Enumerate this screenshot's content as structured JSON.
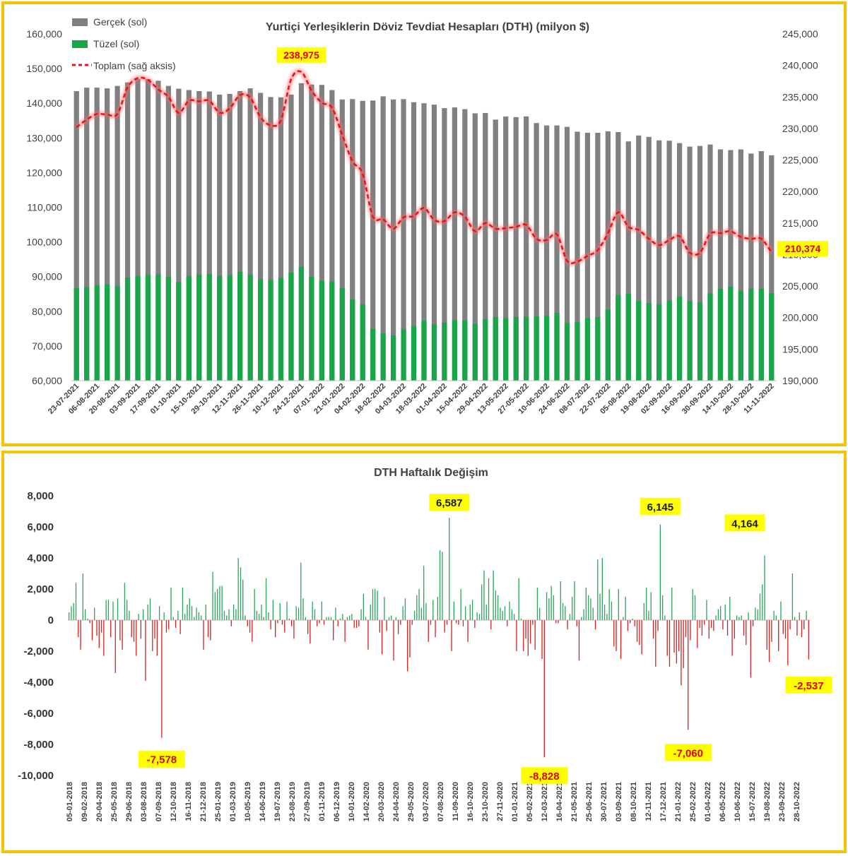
{
  "colors": {
    "gercek": "#808080",
    "tuzel": "#1aa54a",
    "toplam": "#e8141a",
    "positive": "#2aa55a",
    "negative": "#d62020",
    "callout_bg": "#ffff00",
    "frame": "#f5c400"
  },
  "chart_data": [
    {
      "type": "bar",
      "title": "Yurtiçi Yerleşiklerin Döviz Tevdiat Hesapları (DTH) (milyon $)",
      "legend": {
        "position": "top-left",
        "entries": [
          "Gerçek (sol)",
          "Tüzel (sol)",
          "Toplam (sağ aksis)"
        ]
      },
      "ylim_left": [
        60000,
        160000
      ],
      "ylim_right": [
        190000,
        245000
      ],
      "y_ticks_left": [
        "60,000",
        "70,000",
        "80,000",
        "90,000",
        "100,000",
        "110,000",
        "120,000",
        "130,000",
        "140,000",
        "150,000",
        "160,000"
      ],
      "y_ticks_right": [
        "190,000",
        "195,000",
        "200,000",
        "205,000",
        "210,000",
        "215,000",
        "220,000",
        "225,000",
        "230,000",
        "235,000",
        "240,000",
        "245,000"
      ],
      "x_tick_labels": [
        "23-07-2021",
        "06-08-2021",
        "20-08-2021",
        "03-09-2021",
        "17-09-2021",
        "01-10-2021",
        "15-10-2021",
        "29-10-2021",
        "12-11-2021",
        "26-11-2021",
        "10-12-2021",
        "24-12-2021",
        "07-01-2022",
        "21-01-2022",
        "04-02-2022",
        "18-02-2022",
        "04-03-2022",
        "18-03-2022",
        "01-04-2022",
        "15-04-2022",
        "29-04-2022",
        "13-05-2022",
        "27-05-2022",
        "10-06-2022",
        "24-06-2022",
        "08-07-2022",
        "22-07-2022",
        "05-08-2022",
        "19-08-2022",
        "02-09-2022",
        "16-09-2022",
        "30-09-2022",
        "14-10-2022",
        "28-10-2022",
        "11-11-2022"
      ],
      "series": [
        {
          "name": "Gerçek (sol)",
          "axis": "left",
          "type": "bar",
          "values": [
            143500,
            144500,
            144500,
            144300,
            145000,
            146000,
            147000,
            147000,
            146500,
            145000,
            144200,
            143800,
            143500,
            143400,
            142500,
            142700,
            143500,
            144300,
            143000,
            141800,
            141700,
            142500,
            145800,
            145400,
            145300,
            143800,
            141100,
            141200,
            140700,
            140800,
            142000,
            141100,
            141200,
            140300,
            140000,
            139600,
            138600,
            138800,
            138300,
            137100,
            137200,
            135300,
            136200,
            136000,
            136200,
            134300,
            133600,
            133600,
            133200,
            131800,
            131500,
            131500,
            131900,
            131700,
            129000,
            130700,
            130300,
            129300,
            129200,
            128500,
            127500,
            127700,
            128100,
            126700,
            126500,
            126700,
            125500,
            126200,
            125000
          ]
        },
        {
          "name": "Tüzel (sol)",
          "axis": "left",
          "type": "bar",
          "values": [
            86700,
            87000,
            87500,
            87800,
            87200,
            89700,
            90200,
            90600,
            90600,
            90000,
            88500,
            90200,
            90600,
            90800,
            90200,
            90400,
            91400,
            90500,
            89300,
            89000,
            89600,
            91200,
            92800,
            90000,
            88800,
            88600,
            86700,
            83400,
            82000,
            75000,
            73600,
            73000,
            74800,
            75800,
            77300,
            76300,
            76700,
            77400,
            77400,
            76400,
            77800,
            78300,
            78000,
            78300,
            78400,
            78500,
            78700,
            79600,
            76600,
            76900,
            78000,
            78300,
            80500,
            84700,
            85100,
            83000,
            82400,
            82100,
            83100,
            84200,
            82900,
            82500,
            85200,
            86500,
            87100,
            86000,
            86500,
            86500,
            85200
          ]
        },
        {
          "name": "Toplam (sağ aksis)",
          "axis": "right",
          "type": "line",
          "values": [
            230200,
            231400,
            232300,
            232200,
            232300,
            236500,
            238000,
            237700,
            236200,
            235000,
            232500,
            234400,
            234300,
            234400,
            232500,
            233200,
            235300,
            234900,
            231800,
            230500,
            231300,
            237800,
            238975,
            236000,
            234100,
            233300,
            229000,
            224800,
            222800,
            216000,
            215600,
            214100,
            215900,
            216100,
            217400,
            215500,
            215300,
            216700,
            216000,
            213700,
            215000,
            214100,
            214200,
            214400,
            214700,
            212500,
            212300,
            213200,
            209000,
            208900,
            209800,
            210700,
            213400,
            216700,
            214400,
            213900,
            212500,
            211500,
            212300,
            212900,
            210300,
            210300,
            213300,
            213400,
            213700,
            212800,
            212500,
            212500,
            210374
          ]
        }
      ],
      "annotations": [
        {
          "label": "238,975",
          "series": "Toplam (sağ aksis)",
          "value": 238975
        },
        {
          "label": "210,374",
          "series": "Toplam (sağ aksis)",
          "value": 210374
        }
      ]
    },
    {
      "type": "bar",
      "title": "DTH Haftalık Değişim",
      "ylim": [
        -10000,
        8000
      ],
      "y_ticks": [
        "-10,000",
        "-8,000",
        "-6,000",
        "-4,000",
        "-2,000",
        "0",
        "2,000",
        "4,000",
        "6,000",
        "8,000"
      ],
      "x_tick_labels": [
        "05-01-2018",
        "09-02-2018",
        "20-04-2018",
        "25-05-2018",
        "29-06-2018",
        "03-08-2018",
        "07-09-2018",
        "12-10-2018",
        "16-11-2018",
        "21-12-2018",
        "25-01-2019",
        "01-03-2019",
        "10-05-2019",
        "14-06-2019",
        "19-07-2019",
        "23-08-2019",
        "27-09-2019",
        "01-11-2019",
        "06-12-2019",
        "10-01-2020",
        "14-02-2020",
        "20-03-2020",
        "24-04-2020",
        "29-05-2020",
        "03-07-2020",
        "07-08-2020",
        "11-09-2020",
        "16-10-2020",
        "23-10-2020",
        "27-11-2020",
        "01-01-2021",
        "05-02-2021",
        "12-03-2021",
        "16-04-2021",
        "21-05-2021",
        "25-06-2021",
        "30-07-2021",
        "03-09-2021",
        "08-10-2021",
        "12-11-2021",
        "17-12-2021",
        "21-01-2022",
        "25-02-2022",
        "01-04-2022",
        "06-05-2022",
        "10-06-2022",
        "15-07-2022",
        "19-08-2022",
        "23-09-2022",
        "28-10-2022"
      ],
      "values": [
        500,
        900,
        1100,
        2400,
        -1100,
        -1900,
        3000,
        700,
        100,
        -200,
        -1300,
        800,
        -1000,
        -1800,
        -800,
        -2300,
        1300,
        1300,
        -1100,
        1200,
        -3400,
        1400,
        -1300,
        -1900,
        2400,
        1300,
        600,
        -1100,
        -1400,
        -2300,
        400,
        -1200,
        700,
        -3900,
        1000,
        1400,
        -2000,
        -1200,
        -2300,
        900,
        -7578,
        500,
        -800,
        -600,
        2100,
        200,
        -500,
        600,
        -900,
        2100,
        400,
        1000,
        1400,
        900,
        200,
        800,
        500,
        300,
        -1900,
        1000,
        -1100,
        -1300,
        3100,
        1800,
        2000,
        2200,
        2200,
        600,
        300,
        700,
        -400,
        1000,
        700,
        4000,
        3400,
        2600,
        300,
        -400,
        -800,
        -1400,
        2000,
        600,
        400,
        1000,
        200,
        2700,
        500,
        -600,
        1300,
        -1100,
        -200,
        1100,
        -300,
        -800,
        1200,
        100,
        -400,
        -1200,
        900,
        800,
        3700,
        1400,
        200,
        -900,
        -1500,
        1200,
        700,
        -400,
        -200,
        1200,
        -300,
        200,
        200,
        200,
        -1300,
        800,
        -400,
        100,
        400,
        -1400,
        200,
        300,
        400,
        -500,
        -500,
        -400,
        700,
        1700,
        200,
        -1900,
        1000,
        2000,
        2000,
        1900,
        -800,
        -2200,
        1500,
        -700,
        200,
        300,
        -2600,
        200,
        -900,
        -300,
        900,
        1400,
        -3300,
        -2400,
        -300,
        600,
        1600,
        2000,
        800,
        3500,
        1100,
        -1400,
        -300,
        1300,
        -1100,
        1500,
        4500,
        4400,
        -800,
        -300,
        6587,
        -2000,
        1200,
        -200,
        -300,
        2000,
        -400,
        900,
        -1400,
        1000,
        1300,
        -500,
        500,
        400,
        2300,
        3200,
        1000,
        2700,
        -600,
        3200,
        1900,
        1600,
        800,
        600,
        900,
        -400,
        1200,
        700,
        400,
        -2000,
        2700,
        100,
        -2000,
        -1200,
        -2300,
        -1500,
        -300,
        -1900,
        2100,
        800,
        -2500,
        -8828,
        1800,
        1400,
        2200,
        1600,
        -200,
        -200,
        2500,
        1100,
        900,
        -600,
        400,
        1500,
        2500,
        -400,
        -2600,
        200,
        700,
        2100,
        1600,
        1400,
        800,
        -600,
        3900,
        1700,
        4000,
        1000,
        400,
        2000,
        1200,
        -1700,
        -2000,
        2000,
        -2500,
        200,
        1500,
        -700,
        -200,
        100,
        -400,
        -1400,
        -1600,
        -2200,
        1100,
        2100,
        600,
        1800,
        -1200,
        -3000,
        -700,
        6145,
        1600,
        300,
        -2300,
        -3000,
        2100,
        -2100,
        -2800,
        -2000,
        -4200,
        -3100,
        -1100,
        -7060,
        -1300,
        2000,
        1600,
        -1800,
        -500,
        -1000,
        -300,
        1300,
        -1200,
        -500,
        -700,
        300,
        700,
        900,
        -600,
        1000,
        -1000,
        1500,
        -2300,
        -1200,
        300,
        200,
        300,
        -1000,
        -1600,
        500,
        -3700,
        -400,
        800,
        700,
        1700,
        2300,
        4164,
        -1900,
        -2700,
        -1400,
        600,
        300,
        -2000,
        1200,
        -900,
        -1200,
        -2900,
        -600,
        3000,
        200,
        -1000,
        500,
        -1100,
        -600,
        600,
        -2537
      ],
      "annotations": [
        {
          "label": "-7,578",
          "value": -7578
        },
        {
          "label": "6,587",
          "value": 6587
        },
        {
          "label": "-8,828",
          "value": -8828
        },
        {
          "label": "6,145",
          "value": 6145
        },
        {
          "label": "-7,060",
          "value": -7060
        },
        {
          "label": "4,164",
          "value": 4164
        },
        {
          "label": "-2,537",
          "value": -2537
        }
      ]
    }
  ]
}
